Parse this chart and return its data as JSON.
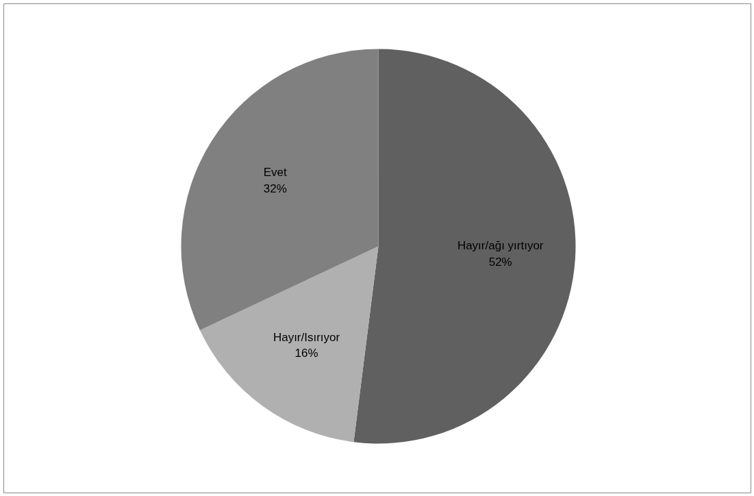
{
  "chart_data": {
    "type": "pie",
    "categories": [
      "Hayır/ağı yırtıyor",
      "Hayır/Isırıyor",
      "Evet"
    ],
    "values": [
      52,
      16,
      32
    ],
    "value_labels": [
      "52%",
      "16%",
      "32%"
    ],
    "colors": [
      "#606060",
      "#b0b0b0",
      "#808080"
    ],
    "legend": false
  }
}
